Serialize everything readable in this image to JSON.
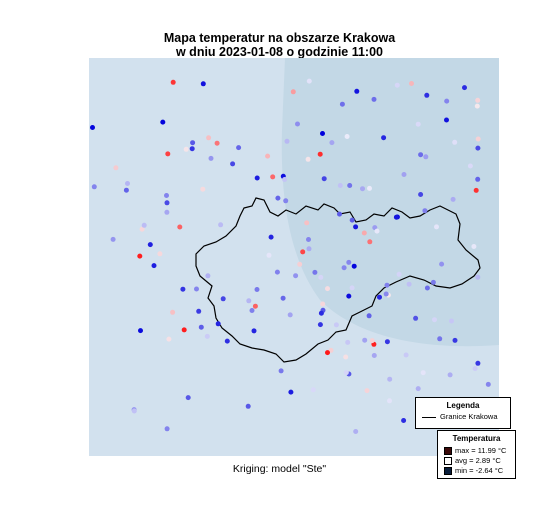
{
  "title_line1": "Mapa temperatur na obszarze Krakowa",
  "title_line2": "w dniu 2023-01-08 o godzinie 11:00",
  "caption": "Kriging: model \"Ste\"",
  "legend": {
    "title": "Legenda",
    "boundary_label": "Granice Krakowa"
  },
  "temperature_legend": {
    "title": "Temperatura",
    "max_label": "max =  11.99 °C",
    "avg_label": "avg =  2.89 °C",
    "min_label": "min =  -2.64 °C",
    "max_color": "#3b0a0a",
    "avg_color": "#ffffff",
    "min_color": "#0a1e3b"
  },
  "colors": {
    "background": "#d2e1ee",
    "surface_tint": "#c3d8e6",
    "cold": "#0000dd",
    "warm": "#ff1a1a"
  },
  "stations": {
    "count": 180,
    "min_value": -2.64,
    "avg_value": 2.89,
    "max_value": 11.99
  }
}
